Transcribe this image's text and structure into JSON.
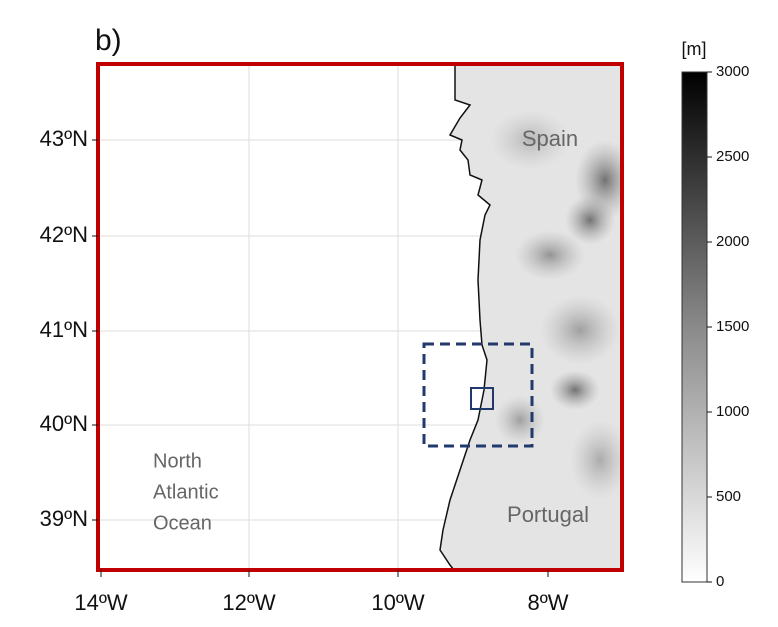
{
  "panel_label": "b)",
  "map": {
    "lat_ticks": [
      "43ºN",
      "42ºN",
      "41ºN",
      "40ºN",
      "39ºN"
    ],
    "lon_ticks": [
      "14ºW",
      "12ºW",
      "10ºW",
      "8ºW"
    ],
    "labels": {
      "spain": "Spain",
      "portugal": "Portugal",
      "ocean": [
        "North",
        "Atlantic",
        "Ocean"
      ]
    }
  },
  "colorbar": {
    "unit": "[m]",
    "ticks": [
      0,
      500,
      1000,
      1500,
      2000,
      2500,
      3000
    ]
  }
}
